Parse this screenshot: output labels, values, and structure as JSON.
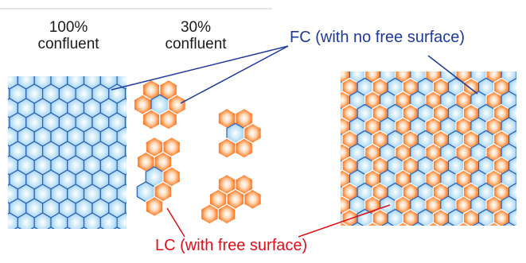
{
  "labels": {
    "col1_line1": "100%",
    "col1_line2": "confluent",
    "col2_line1": "30%",
    "col2_line2": "confluent"
  },
  "callouts": {
    "fc": "FC (with no free surface)",
    "lc": "LC (with free surface)"
  },
  "colors": {
    "fc_cell": "#a9d6f2",
    "fc_edge": "#2b5fb0",
    "lc_cell": "#ff8a3a",
    "fc_text": "#1e3a9a",
    "lc_text": "#e0101a"
  }
}
